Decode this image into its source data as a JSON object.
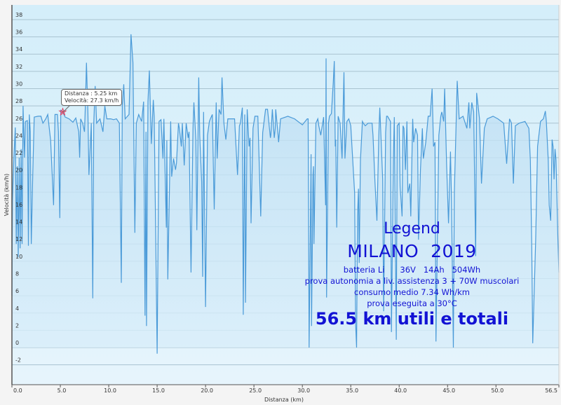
{
  "chart_data": {
    "type": "area",
    "xlabel": "Distanza  (km)",
    "ylabel": "Velocità (km/h)",
    "xlim": [
      0,
      56.5
    ],
    "ylim": [
      -4.3,
      39.7
    ],
    "grid": true,
    "x_ticks": [
      "0.0",
      "5.0",
      "10.0",
      "15.0",
      "20.0",
      "25.0",
      "30.0",
      "35.0",
      "40.0",
      "45.0",
      "50.0",
      "56.5"
    ],
    "x_tick_values": [
      0,
      5,
      10,
      15,
      20,
      25,
      30,
      35,
      40,
      45,
      50,
      56.5
    ],
    "y_ticks": [
      -2,
      0,
      2,
      4,
      6,
      8,
      10,
      12,
      14,
      16,
      18,
      20,
      22,
      24,
      26,
      28,
      30,
      32,
      34,
      36,
      38
    ],
    "colors": {
      "line": "#4a9ad8",
      "fill": "#bfe0f5",
      "background": "#d8f0fb",
      "legend_text": "#1212d4",
      "marker": "#e04060"
    },
    "tooltip": {
      "distance_label": "Distanza  : 5.25 km",
      "speed_label": "Velocità: 27.3 km/h",
      "x": 5.25,
      "y": 27.3
    },
    "points": [
      [
        0,
        6
      ],
      [
        0.05,
        17
      ],
      [
        0.2,
        22
      ],
      [
        0.35,
        25.5
      ],
      [
        0.45,
        12
      ],
      [
        0.55,
        21
      ],
      [
        0.65,
        10.5
      ],
      [
        0.75,
        22
      ],
      [
        0.85,
        11.5
      ],
      [
        0.95,
        23
      ],
      [
        1.05,
        12
      ],
      [
        1.15,
        28
      ],
      [
        1.3,
        22
      ],
      [
        1.4,
        26.2
      ],
      [
        1.6,
        26.3
      ],
      [
        1.7,
        11.8
      ],
      [
        1.8,
        27
      ],
      [
        1.9,
        25
      ],
      [
        2.0,
        12
      ],
      [
        2.15,
        20
      ],
      [
        2.3,
        26.7
      ],
      [
        2.7,
        26.8
      ],
      [
        3.0,
        26.8
      ],
      [
        3.2,
        26
      ],
      [
        3.5,
        26.5
      ],
      [
        3.7,
        27
      ],
      [
        4.0,
        24
      ],
      [
        4.3,
        16.5
      ],
      [
        4.45,
        27
      ],
      [
        4.7,
        27
      ],
      [
        4.8,
        25
      ],
      [
        4.95,
        15
      ],
      [
        5.05,
        27.5
      ],
      [
        5.25,
        27.3
      ],
      [
        5.5,
        26.7
      ],
      [
        5.9,
        26.5
      ],
      [
        6.3,
        26.1
      ],
      [
        6.6,
        26.6
      ],
      [
        6.9,
        25
      ],
      [
        7.0,
        22
      ],
      [
        7.1,
        26.5
      ],
      [
        7.3,
        26
      ],
      [
        7.5,
        25
      ],
      [
        7.6,
        28.5
      ],
      [
        7.7,
        33
      ],
      [
        7.85,
        27
      ],
      [
        7.95,
        20
      ],
      [
        8.2,
        26
      ],
      [
        8.35,
        5.7
      ],
      [
        8.45,
        26
      ],
      [
        8.6,
        30.3
      ],
      [
        8.75,
        26
      ],
      [
        9.1,
        26.5
      ],
      [
        9.4,
        25
      ],
      [
        9.6,
        28
      ],
      [
        9.8,
        26.5
      ],
      [
        10.2,
        26.5
      ],
      [
        10.5,
        26.4
      ],
      [
        10.8,
        26.5
      ],
      [
        11.1,
        26
      ],
      [
        11.3,
        7.5
      ],
      [
        11.4,
        28
      ],
      [
        11.55,
        30.5
      ],
      [
        11.7,
        26.5
      ],
      [
        12.1,
        27
      ],
      [
        12.3,
        36.3
      ],
      [
        12.5,
        33
      ],
      [
        12.7,
        13.3
      ],
      [
        12.85,
        26
      ],
      [
        13.1,
        27
      ],
      [
        13.4,
        26.2
      ],
      [
        13.6,
        28.5
      ],
      [
        13.75,
        3.7
      ],
      [
        13.85,
        25
      ],
      [
        13.9,
        2.5
      ],
      [
        14.05,
        28.5
      ],
      [
        14.2,
        32.1
      ],
      [
        14.4,
        23.6
      ],
      [
        14.6,
        28.7
      ],
      [
        14.7,
        26.8
      ],
      [
        15.0,
        -0.7
      ],
      [
        15.2,
        26.2
      ],
      [
        15.4,
        26.4
      ],
      [
        15.6,
        21.9
      ],
      [
        15.7,
        26.5
      ],
      [
        15.95,
        13.9
      ],
      [
        16.0,
        24
      ],
      [
        16.1,
        7.9
      ],
      [
        16.4,
        26.2
      ],
      [
        16.5,
        19.8
      ],
      [
        16.7,
        21.9
      ],
      [
        16.9,
        20.6
      ],
      [
        17.0,
        21.4
      ],
      [
        17.2,
        26.0
      ],
      [
        17.3,
        25.4
      ],
      [
        17.5,
        23.3
      ],
      [
        17.6,
        26.0
      ],
      [
        17.8,
        21.1
      ],
      [
        18.0,
        26.0
      ],
      [
        18.2,
        24.3
      ],
      [
        18.3,
        25
      ],
      [
        18.5,
        8.7
      ],
      [
        18.7,
        25.4
      ],
      [
        18.8,
        28.4
      ],
      [
        19.0,
        24
      ],
      [
        19.1,
        13.6
      ],
      [
        19.3,
        31.3
      ],
      [
        19.4,
        24.6
      ],
      [
        19.6,
        19.2
      ],
      [
        19.7,
        8.2
      ],
      [
        19.8,
        27.3
      ],
      [
        20.0,
        4.7
      ],
      [
        20.2,
        24.6
      ],
      [
        20.4,
        26.2
      ],
      [
        20.5,
        26.5
      ],
      [
        20.7,
        27.0
      ],
      [
        20.9,
        16.0
      ],
      [
        21.1,
        28.4
      ],
      [
        21.2,
        21.9
      ],
      [
        21.4,
        27.6
      ],
      [
        21.6,
        27.0
      ],
      [
        21.7,
        31.3
      ],
      [
        21.9,
        26.0
      ],
      [
        22.1,
        24.1
      ],
      [
        22.3,
        26.5
      ],
      [
        22.7,
        26.5
      ],
      [
        23.0,
        26.5
      ],
      [
        23.3,
        20.0
      ],
      [
        23.5,
        25.7
      ],
      [
        23.6,
        26.0
      ],
      [
        23.8,
        27.8
      ],
      [
        23.9,
        3.8
      ],
      [
        24.05,
        27.0
      ],
      [
        24.13,
        5.2
      ],
      [
        24.3,
        27.6
      ],
      [
        24.5,
        23.3
      ],
      [
        24.6,
        24.3
      ],
      [
        24.7,
        14.4
      ],
      [
        24.9,
        25.4
      ],
      [
        25.1,
        26.8
      ],
      [
        25.4,
        26.8
      ],
      [
        25.7,
        15.2
      ],
      [
        25.9,
        24.9
      ],
      [
        26.2,
        27.6
      ],
      [
        26.4,
        27.6
      ],
      [
        26.7,
        24.3
      ],
      [
        26.74,
        24.6
      ],
      [
        26.9,
        27.6
      ],
      [
        27.1,
        24.3
      ],
      [
        27.2,
        25.4
      ],
      [
        27.25,
        27.6
      ],
      [
        27.5,
        24.6
      ],
      [
        27.55,
        23.8
      ],
      [
        27.75,
        26.5
      ],
      [
        28.5,
        26.8
      ],
      [
        29.2,
        26.5
      ],
      [
        30.0,
        25.8
      ],
      [
        30.5,
        26.5
      ],
      [
        30.6,
        26.5
      ],
      [
        30.7,
        0
      ],
      [
        30.9,
        22.4
      ],
      [
        30.95,
        2.5
      ],
      [
        31.1,
        20
      ],
      [
        31.15,
        21
      ],
      [
        31.2,
        12
      ],
      [
        31.4,
        26
      ],
      [
        31.6,
        26.5
      ],
      [
        31.7,
        25.7
      ],
      [
        31.9,
        24.6
      ],
      [
        32.2,
        26.7
      ],
      [
        32.4,
        16.5
      ],
      [
        32.45,
        33.5
      ],
      [
        32.5,
        5.8
      ],
      [
        32.7,
        26.0
      ],
      [
        32.8,
        26.8
      ],
      [
        33.0,
        27.1
      ],
      [
        33.2,
        30.8
      ],
      [
        33.3,
        33.2
      ],
      [
        33.4,
        23.3
      ],
      [
        33.45,
        24.1
      ],
      [
        33.55,
        13.9
      ],
      [
        33.7,
        26.8
      ],
      [
        33.9,
        26.0
      ],
      [
        34.1,
        21.9
      ],
      [
        34.3,
        31.9
      ],
      [
        34.4,
        21.9
      ],
      [
        34.6,
        26.2
      ],
      [
        34.8,
        26.5
      ],
      [
        35.0,
        25.7
      ],
      [
        35.4,
        17.9
      ],
      [
        35.5,
        2.8
      ],
      [
        35.6,
        0
      ],
      [
        35.7,
        15.2
      ],
      [
        35.8,
        18.4
      ],
      [
        35.87,
        9.8
      ],
      [
        36.0,
        21.7
      ],
      [
        36.2,
        26.2
      ],
      [
        36.3,
        26.0
      ],
      [
        36.5,
        25.7
      ],
      [
        36.8,
        26.0
      ],
      [
        37.2,
        26.0
      ],
      [
        37.3,
        24.6
      ],
      [
        37.5,
        19.2
      ],
      [
        37.7,
        14.7
      ],
      [
        37.9,
        24.6
      ],
      [
        38.0,
        27.8
      ],
      [
        38.3,
        19.5
      ],
      [
        38.4,
        4.2
      ],
      [
        38.6,
        24.9
      ],
      [
        38.7,
        26.8
      ],
      [
        38.8,
        26.8
      ],
      [
        39.1,
        26.2
      ],
      [
        39.2,
        1.8
      ],
      [
        39.4,
        21.7
      ],
      [
        39.5,
        26.7
      ],
      [
        39.7,
        0.9
      ],
      [
        39.8,
        25.7
      ],
      [
        40.0,
        26.0
      ],
      [
        40.1,
        18.7
      ],
      [
        40.3,
        15.2
      ],
      [
        40.4,
        25.7
      ],
      [
        40.5,
        25.4
      ],
      [
        40.65,
        20.6
      ],
      [
        40.8,
        26.2
      ],
      [
        40.9,
        17.9
      ],
      [
        41.1,
        19.0
      ],
      [
        41.2,
        15.2
      ],
      [
        41.4,
        26.5
      ],
      [
        41.5,
        23.8
      ],
      [
        41.7,
        25.4
      ],
      [
        41.9,
        24.6
      ],
      [
        42.0,
        12.5
      ],
      [
        42.2,
        20.6
      ],
      [
        42.4,
        25.4
      ],
      [
        42.5,
        21.9
      ],
      [
        42.75,
        23.8
      ],
      [
        43.0,
        26.8
      ],
      [
        43.2,
        26.8
      ],
      [
        43.4,
        30.0
      ],
      [
        43.55,
        23.3
      ],
      [
        43.7,
        23.8
      ],
      [
        43.8,
        0.7
      ],
      [
        44.1,
        24.6
      ],
      [
        44.3,
        26.8
      ],
      [
        44.4,
        27.3
      ],
      [
        44.6,
        26.2
      ],
      [
        44.7,
        30.0
      ],
      [
        44.9,
        21.1
      ],
      [
        45.1,
        14.4
      ],
      [
        45.3,
        22.7
      ],
      [
        45.4,
        17.4
      ],
      [
        45.6,
        0
      ],
      [
        45.7,
        17.9
      ],
      [
        46.0,
        30.9
      ],
      [
        46.2,
        26.5
      ],
      [
        46.6,
        26.8
      ],
      [
        47.0,
        25.4
      ],
      [
        47.2,
        28.4
      ],
      [
        47.3,
        25.4
      ],
      [
        47.5,
        28.4
      ],
      [
        47.7,
        27.3
      ],
      [
        47.9,
        10.6
      ],
      [
        48.0,
        29.5
      ],
      [
        48.3,
        26.5
      ],
      [
        48.5,
        19.0
      ],
      [
        48.8,
        25.4
      ],
      [
        49.1,
        26.5
      ],
      [
        49.7,
        26.8
      ],
      [
        50.2,
        26.5
      ],
      [
        50.8,
        26.0
      ],
      [
        51.1,
        21.3
      ],
      [
        51.4,
        26.5
      ],
      [
        51.6,
        26.0
      ],
      [
        51.8,
        19.0
      ],
      [
        52.0,
        25.7
      ],
      [
        52.4,
        26.0
      ],
      [
        53.0,
        26.2
      ],
      [
        53.4,
        25.4
      ],
      [
        53.55,
        21.7
      ],
      [
        53.7,
        11.6
      ],
      [
        53.8,
        0.5
      ],
      [
        54.1,
        12.5
      ],
      [
        54.3,
        23.3
      ],
      [
        54.6,
        26.2
      ],
      [
        54.9,
        26.5
      ],
      [
        55.1,
        27.4
      ],
      [
        55.2,
        26.2
      ],
      [
        55.4,
        21.7
      ],
      [
        55.5,
        16.5
      ],
      [
        55.65,
        14.7
      ],
      [
        55.8,
        24.1
      ],
      [
        55.9,
        23.3
      ],
      [
        56.0,
        19.5
      ],
      [
        56.1,
        23.0
      ],
      [
        56.2,
        21.7
      ],
      [
        56.4,
        12.5
      ],
      [
        56.5,
        8.7
      ]
    ]
  },
  "legend": {
    "title": "Legend",
    "subtitle": "MILANO  2019",
    "lines": [
      "batteria Li      36V   14Ah   504Wh",
      "prova autonomia a liv. assistenza 3 + 70W muscolari",
      "consumo medio 7.34 Wh/km",
      "prova eseguita a 30°C"
    ],
    "summary": "56.5 km utili e totali"
  }
}
